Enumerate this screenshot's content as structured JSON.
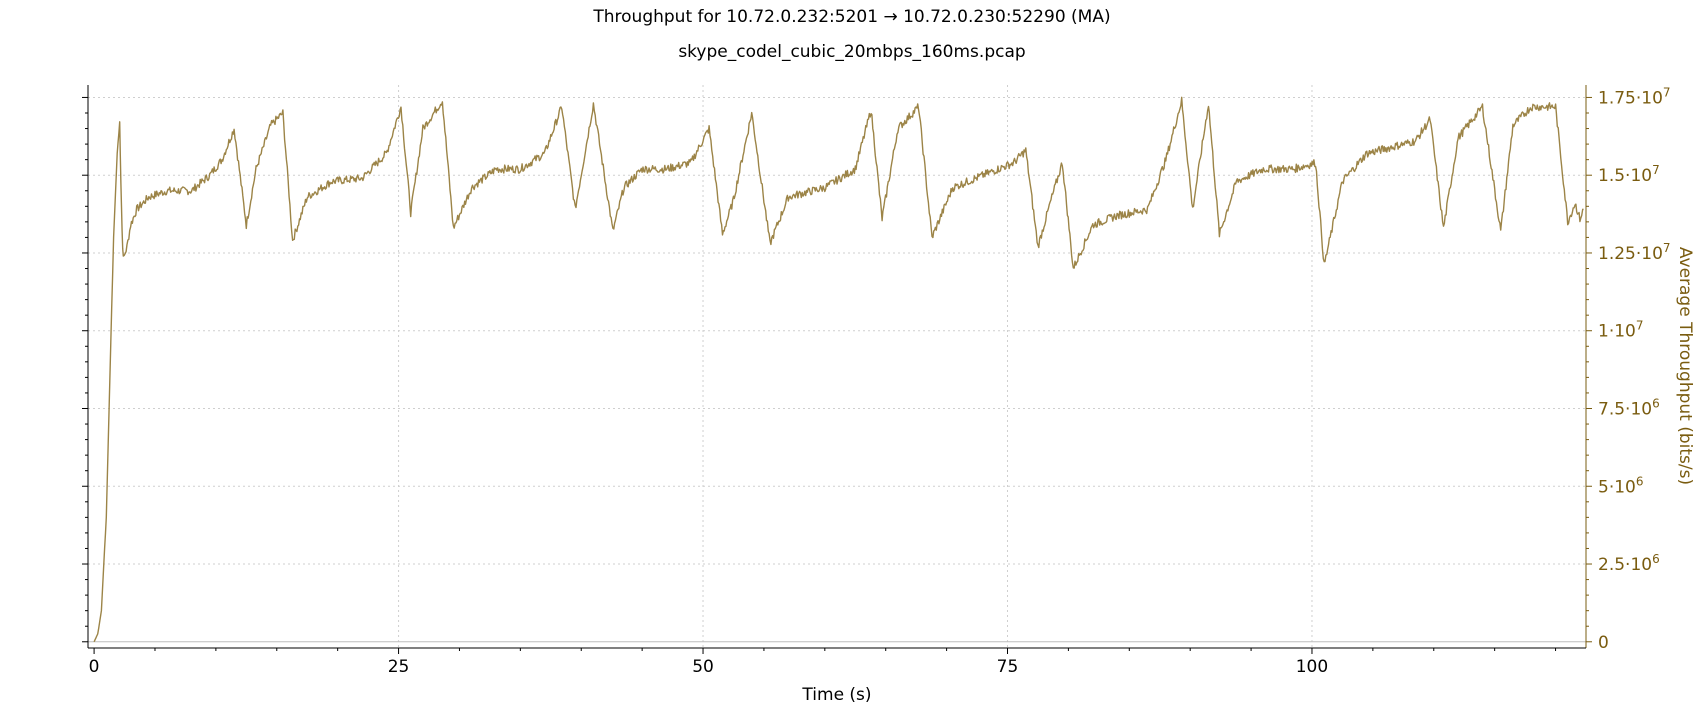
{
  "chart_data": {
    "type": "line",
    "title": "Throughput for 10.72.0.232:5201 → 10.72.0.230:52290 (MA)",
    "subtitle": "skype_codel_cubic_20mbps_160ms.pcap",
    "xlabel": "Time (s)",
    "ylabel": "Average Throughput (bits/s)",
    "xlim": [
      -0.5,
      122.5
    ],
    "ylim": [
      -200000,
      17900000
    ],
    "x_ticks": [
      {
        "value": 0,
        "label": "0"
      },
      {
        "value": 25,
        "label": "25"
      },
      {
        "value": 50,
        "label": "50"
      },
      {
        "value": 75,
        "label": "75"
      },
      {
        "value": 100,
        "label": "100"
      }
    ],
    "y_ticks": [
      {
        "value": 0,
        "mant": "0",
        "exp": ""
      },
      {
        "value": 2500000,
        "mant": "2.5·10",
        "exp": "6"
      },
      {
        "value": 5000000,
        "mant": "5·10",
        "exp": "6"
      },
      {
        "value": 7500000,
        "mant": "7.5·10",
        "exp": "6"
      },
      {
        "value": 10000000,
        "mant": "1·10",
        "exp": "7"
      },
      {
        "value": 12500000,
        "mant": "1.25·10",
        "exp": "7"
      },
      {
        "value": 15000000,
        "mant": "1.5·10",
        "exp": "7"
      },
      {
        "value": 17500000,
        "mant": "1.75·10",
        "exp": "7"
      }
    ],
    "grid": true,
    "line_color": "#9c8447",
    "axis_color": "#7a5c10",
    "series": [
      {
        "x": [
          0,
          0.3,
          0.6,
          1.0,
          1.3,
          1.6,
          1.9,
          2.1,
          2.2,
          2.3,
          2.4,
          2.55,
          2.7,
          3.0,
          3.5,
          4.5,
          6,
          8,
          9.5,
          10.5,
          11.5,
          12.5,
          13.3,
          14.5,
          15.5,
          16.3,
          17.5,
          19.5,
          22,
          24,
          25.2,
          26,
          27,
          28.6,
          29.5,
          31,
          33,
          35,
          37,
          38.4,
          39.5,
          41,
          42.6,
          43.5,
          45,
          47,
          49,
          50.5,
          51.6,
          52.5,
          54,
          55.5,
          57,
          60,
          62.5,
          63.8,
          64.7,
          66,
          67.7,
          68.8,
          70.5,
          73,
          75.5,
          76.5,
          77.5,
          78.5,
          79.5,
          80.4,
          82,
          84,
          86.5,
          88,
          89.3,
          90.2,
          91.5,
          92.4,
          93.8,
          96,
          98.5,
          100.3,
          101,
          102.5,
          104.5,
          106.5,
          108.5,
          109.7,
          110.8,
          112,
          114,
          115.5,
          116.5,
          118,
          120,
          121,
          121.6,
          122,
          122.3
        ],
        "y": [
          0,
          250000,
          1000000,
          4000000,
          8500000,
          13000000,
          15700000,
          16700000,
          14800000,
          13200000,
          12300000,
          12500000,
          12700000,
          13400000,
          13900000,
          14300000,
          14500000,
          14500000,
          15000000,
          15500000,
          16500000,
          13400000,
          15200000,
          16600000,
          17000000,
          12900000,
          14300000,
          14800000,
          14900000,
          15700000,
          17200000,
          13800000,
          16500000,
          17400000,
          13300000,
          14600000,
          15200000,
          15200000,
          15700000,
          17200000,
          13900000,
          17300000,
          13200000,
          14600000,
          15200000,
          15200000,
          15400000,
          16500000,
          13100000,
          14200000,
          17000000,
          12800000,
          14300000,
          14600000,
          15200000,
          17100000,
          13600000,
          16500000,
          17200000,
          13000000,
          14600000,
          15000000,
          15400000,
          15800000,
          12700000,
          14100000,
          15400000,
          12000000,
          13400000,
          13700000,
          13900000,
          15500000,
          17400000,
          13900000,
          17300000,
          13100000,
          14800000,
          15200000,
          15200000,
          15400000,
          12100000,
          14800000,
          15700000,
          15900000,
          16100000,
          16800000,
          13300000,
          16200000,
          17200000,
          13200000,
          16600000,
          17200000,
          17200000,
          13500000,
          14100000,
          13600000,
          13900000
        ]
      }
    ]
  }
}
